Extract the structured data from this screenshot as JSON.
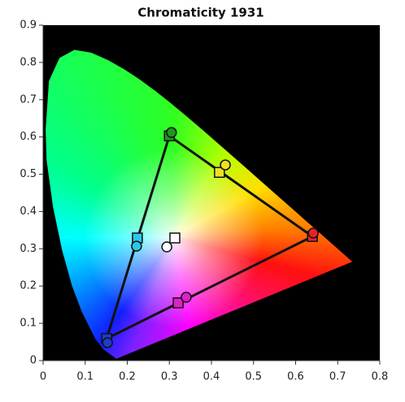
{
  "chart_data": {
    "type": "scatter",
    "title": "Chromaticity 1931",
    "xlim": [
      0,
      0.8
    ],
    "ylim": [
      0,
      0.9
    ],
    "xticks": [
      0,
      0.1,
      0.2,
      0.3,
      0.4,
      0.5,
      0.6,
      0.7,
      0.8
    ],
    "yticks": [
      0,
      0.1,
      0.2,
      0.3,
      0.4,
      0.5,
      0.6,
      0.7,
      0.8,
      0.9
    ],
    "gamut_triangle": true,
    "series": [
      {
        "marker": "square",
        "x": [
          0.64,
          0.3,
          0.151,
          0.224,
          0.321,
          0.419,
          0.313
        ],
        "values": [
          0.333,
          0.603,
          0.059,
          0.329,
          0.155,
          0.505,
          0.329
        ],
        "colors": [
          "#e8202c",
          "#1a9a1a",
          "#1e3cc8",
          "#29c8e8",
          "#e020c8",
          "#f0e020",
          "#ffffff"
        ]
      },
      {
        "marker": "circle",
        "x": [
          0.642,
          0.305,
          0.153,
          0.222,
          0.34,
          0.433,
          0.294
        ],
        "values": [
          0.342,
          0.612,
          0.048,
          0.307,
          0.17,
          0.525,
          0.305
        ],
        "colors": [
          "#e8202c",
          "#1a9a1a",
          "#1e3cc8",
          "#29c8e8",
          "#e020c8",
          "#f0e020",
          "#ffffff"
        ]
      }
    ]
  }
}
